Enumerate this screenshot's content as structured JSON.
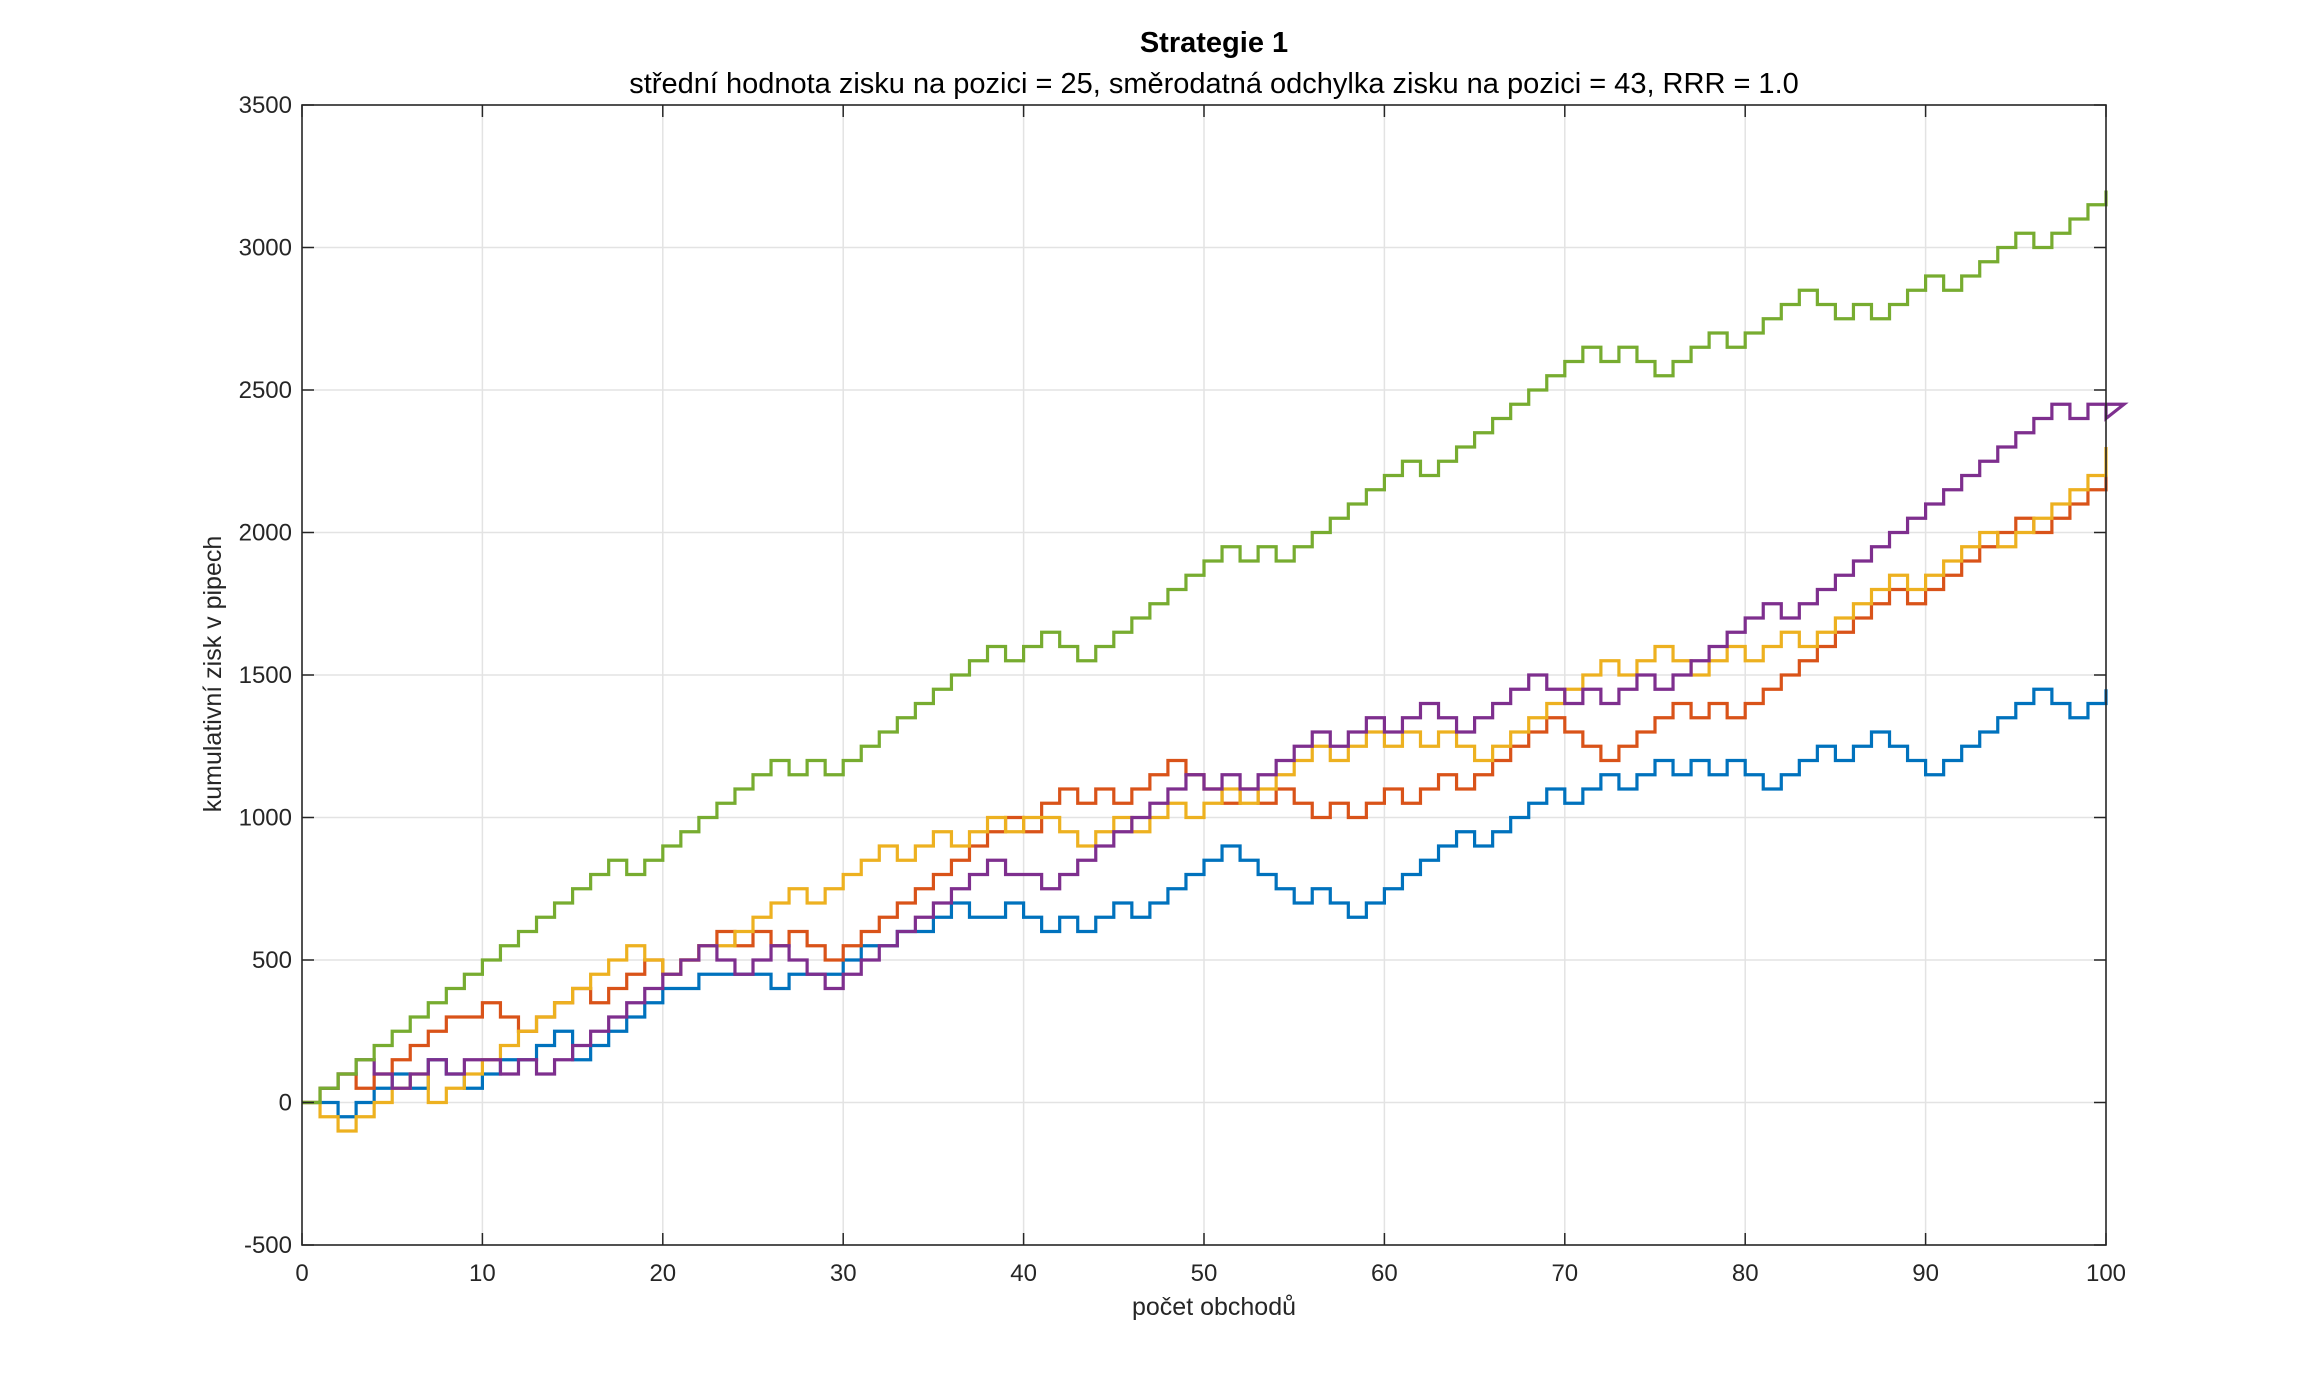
{
  "chart_data": {
    "type": "line",
    "subtype": "stairs",
    "title": "Strategie 1",
    "subtitle": "střední hodnota zisku na pozici = 25,  směrodatná odchylka zisku na pozici = 43,  RRR = 1.0",
    "xlabel": "počet obchodů",
    "ylabel": "kumulativní zisk v pipech",
    "xlim": [
      0,
      100
    ],
    "ylim": [
      -500,
      3500
    ],
    "xticks": [
      0,
      10,
      20,
      30,
      40,
      50,
      60,
      70,
      80,
      90,
      100
    ],
    "yticks": [
      -500,
      0,
      500,
      1000,
      1500,
      2000,
      2500,
      3000,
      3500
    ],
    "grid": true,
    "legend": "none",
    "step": 50,
    "series": [
      {
        "color": "#0072BD",
        "x_start": 0,
        "values": [
          0,
          0,
          -50,
          0,
          50,
          100,
          50,
          150,
          100,
          50,
          100,
          150,
          150,
          200,
          250,
          150,
          200,
          250,
          300,
          350,
          400,
          400,
          450,
          450,
          450,
          450,
          400,
          450,
          450,
          450,
          500,
          550,
          550,
          600,
          600,
          650,
          700,
          650,
          650,
          700,
          650,
          600,
          650,
          600,
          650,
          700,
          650,
          700,
          750,
          800,
          850,
          900,
          850,
          800,
          750,
          700,
          750,
          700,
          650,
          700,
          750,
          800,
          850,
          900,
          950,
          900,
          950,
          1000,
          1050,
          1100,
          1050,
          1100,
          1150,
          1100,
          1150,
          1200,
          1150,
          1200,
          1150,
          1200,
          1150,
          1100,
          1150,
          1200,
          1250,
          1200,
          1250,
          1300,
          1250,
          1200,
          1150,
          1200,
          1250,
          1300,
          1350,
          1400,
          1450,
          1400,
          1350,
          1400,
          1450
        ]
      },
      {
        "color": "#D95319",
        "x_start": 0,
        "values": [
          0,
          50,
          100,
          50,
          100,
          150,
          200,
          250,
          300,
          300,
          350,
          300,
          250,
          300,
          350,
          400,
          350,
          400,
          450,
          500,
          450,
          500,
          550,
          600,
          550,
          600,
          550,
          600,
          550,
          500,
          550,
          600,
          650,
          700,
          750,
          800,
          850,
          900,
          950,
          1000,
          950,
          1050,
          1100,
          1050,
          1100,
          1050,
          1100,
          1150,
          1200,
          1150,
          1100,
          1050,
          1100,
          1050,
          1100,
          1050,
          1000,
          1050,
          1000,
          1050,
          1100,
          1050,
          1100,
          1150,
          1100,
          1150,
          1200,
          1250,
          1300,
          1350,
          1300,
          1250,
          1200,
          1250,
          1300,
          1350,
          1400,
          1350,
          1400,
          1350,
          1400,
          1450,
          1500,
          1550,
          1600,
          1650,
          1700,
          1750,
          1800,
          1750,
          1800,
          1850,
          1900,
          1950,
          2000,
          2050,
          2000,
          2050,
          2100,
          2150,
          2200
        ]
      },
      {
        "color": "#EDB120",
        "x_start": 0,
        "values": [
          0,
          -50,
          -100,
          -50,
          0,
          50,
          100,
          0,
          50,
          100,
          150,
          200,
          250,
          300,
          350,
          400,
          450,
          500,
          550,
          500,
          450,
          500,
          550,
          550,
          600,
          650,
          700,
          750,
          700,
          750,
          800,
          850,
          900,
          850,
          900,
          950,
          900,
          950,
          1000,
          950,
          1000,
          1000,
          950,
          900,
          950,
          1000,
          950,
          1000,
          1050,
          1000,
          1050,
          1100,
          1050,
          1100,
          1150,
          1200,
          1250,
          1200,
          1250,
          1300,
          1250,
          1300,
          1250,
          1300,
          1250,
          1200,
          1250,
          1300,
          1350,
          1400,
          1450,
          1500,
          1550,
          1500,
          1550,
          1600,
          1550,
          1500,
          1550,
          1600,
          1550,
          1600,
          1650,
          1600,
          1650,
          1700,
          1750,
          1800,
          1850,
          1800,
          1850,
          1900,
          1950,
          2000,
          1950,
          2000,
          2050,
          2100,
          2150,
          2200,
          2300
        ]
      },
      {
        "color": "#7E2F8E",
        "x_start": 1,
        "values": [
          50,
          100,
          150,
          100,
          50,
          100,
          150,
          100,
          150,
          150,
          100,
          150,
          100,
          150,
          200,
          250,
          300,
          350,
          400,
          450,
          500,
          550,
          500,
          450,
          500,
          550,
          500,
          450,
          400,
          450,
          500,
          550,
          600,
          650,
          700,
          750,
          800,
          850,
          800,
          800,
          750,
          800,
          850,
          900,
          950,
          1000,
          1050,
          1100,
          1150,
          1100,
          1150,
          1100,
          1150,
          1200,
          1250,
          1300,
          1250,
          1300,
          1350,
          1300,
          1350,
          1400,
          1350,
          1300,
          1350,
          1400,
          1450,
          1500,
          1450,
          1400,
          1450,
          1400,
          1450,
          1500,
          1450,
          1500,
          1550,
          1600,
          1650,
          1700,
          1750,
          1700,
          1750,
          1800,
          1850,
          1900,
          1950,
          2000,
          2050,
          2100,
          2150,
          2200,
          2250,
          2300,
          2350,
          2400,
          2450,
          2400,
          2450,
          2400,
          2450
        ]
      },
      {
        "color": "#77AC30",
        "x_start": 0,
        "values": [
          0,
          50,
          100,
          150,
          200,
          250,
          300,
          350,
          400,
          450,
          500,
          550,
          600,
          650,
          700,
          750,
          800,
          850,
          800,
          850,
          900,
          950,
          1000,
          1050,
          1100,
          1150,
          1200,
          1150,
          1200,
          1150,
          1200,
          1250,
          1300,
          1350,
          1400,
          1450,
          1500,
          1550,
          1600,
          1550,
          1600,
          1650,
          1600,
          1550,
          1600,
          1650,
          1700,
          1750,
          1800,
          1850,
          1900,
          1950,
          1900,
          1950,
          1900,
          1950,
          2000,
          2050,
          2100,
          2150,
          2200,
          2250,
          2200,
          2250,
          2300,
          2350,
          2400,
          2450,
          2500,
          2550,
          2600,
          2650,
          2600,
          2650,
          2600,
          2550,
          2600,
          2650,
          2700,
          2650,
          2700,
          2750,
          2800,
          2850,
          2800,
          2750,
          2800,
          2750,
          2800,
          2850,
          2900,
          2850,
          2900,
          2950,
          3000,
          3050,
          3000,
          3050,
          3100,
          3150,
          3200
        ]
      }
    ]
  }
}
